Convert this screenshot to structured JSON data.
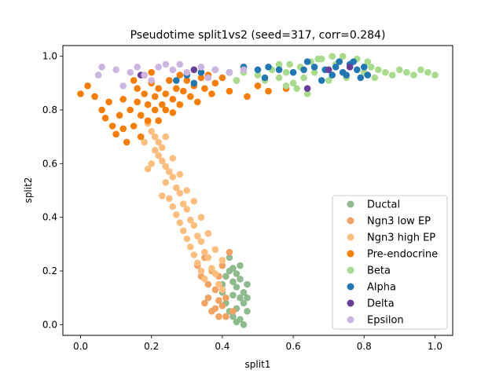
{
  "chart_data": {
    "type": "scatter",
    "title": "Pseudotime split1vs2 (seed=317, corr=0.284)",
    "xlabel": "split1",
    "ylabel": "split2",
    "xlim": [
      -0.05,
      1.05
    ],
    "ylim": [
      -0.04,
      1.04
    ],
    "xticks": [
      "0.0",
      "0.2",
      "0.4",
      "0.6",
      "0.8",
      "1.0"
    ],
    "yticks": [
      "0.0",
      "0.2",
      "0.4",
      "0.6",
      "0.8",
      "1.0"
    ],
    "grid": false,
    "legend_position": "lower right",
    "series": [
      {
        "name": "Ductal",
        "color": "#8fbc8f",
        "points": [
          [
            0.4,
            0.12
          ],
          [
            0.41,
            0.18
          ],
          [
            0.42,
            0.25
          ],
          [
            0.43,
            0.21
          ],
          [
            0.44,
            0.14
          ],
          [
            0.45,
            0.1
          ],
          [
            0.46,
            0.08
          ],
          [
            0.47,
            0.15
          ],
          [
            0.42,
            0.05
          ],
          [
            0.43,
            0.03
          ],
          [
            0.44,
            0.01
          ],
          [
            0.45,
            0.02
          ],
          [
            0.46,
            0.0
          ],
          [
            0.47,
            0.05
          ],
          [
            0.45,
            0.17
          ],
          [
            0.43,
            0.11
          ],
          [
            0.41,
            0.08
          ],
          [
            0.44,
            0.06
          ],
          [
            0.46,
            0.12
          ],
          [
            0.43,
            0.16
          ],
          [
            0.42,
            0.2
          ],
          [
            0.45,
            0.22
          ],
          [
            0.4,
            0.15
          ],
          [
            0.44,
            0.19
          ],
          [
            0.47,
            0.1
          ]
        ]
      },
      {
        "name": "Ngn3 low EP",
        "color": "#f4a261",
        "points": [
          [
            0.35,
            0.08
          ],
          [
            0.37,
            0.05
          ],
          [
            0.39,
            0.03
          ],
          [
            0.4,
            0.07
          ],
          [
            0.41,
            0.03
          ],
          [
            0.36,
            0.15
          ],
          [
            0.37,
            0.2
          ],
          [
            0.38,
            0.13
          ],
          [
            0.39,
            0.18
          ],
          [
            0.4,
            0.22
          ],
          [
            0.35,
            0.25
          ],
          [
            0.41,
            0.1
          ],
          [
            0.38,
            0.06
          ],
          [
            0.43,
            0.05
          ],
          [
            0.34,
            0.18
          ],
          [
            0.39,
            0.09
          ],
          [
            0.33,
            0.22
          ],
          [
            0.42,
            0.27
          ],
          [
            0.36,
            0.1
          ],
          [
            0.39,
            0.15
          ]
        ]
      },
      {
        "name": "Ngn3 high EP",
        "color": "#ffbe7d",
        "points": [
          [
            0.19,
            0.75
          ],
          [
            0.2,
            0.72
          ],
          [
            0.21,
            0.7
          ],
          [
            0.22,
            0.68
          ],
          [
            0.21,
            0.65
          ],
          [
            0.22,
            0.63
          ],
          [
            0.23,
            0.61
          ],
          [
            0.24,
            0.59
          ],
          [
            0.25,
            0.57
          ],
          [
            0.26,
            0.55
          ],
          [
            0.24,
            0.53
          ],
          [
            0.27,
            0.51
          ],
          [
            0.28,
            0.49
          ],
          [
            0.25,
            0.47
          ],
          [
            0.29,
            0.45
          ],
          [
            0.3,
            0.43
          ],
          [
            0.27,
            0.41
          ],
          [
            0.31,
            0.39
          ],
          [
            0.32,
            0.37
          ],
          [
            0.29,
            0.35
          ],
          [
            0.33,
            0.33
          ],
          [
            0.34,
            0.31
          ],
          [
            0.31,
            0.29
          ],
          [
            0.35,
            0.27
          ],
          [
            0.36,
            0.25
          ],
          [
            0.33,
            0.23
          ],
          [
            0.37,
            0.21
          ],
          [
            0.38,
            0.19
          ],
          [
            0.35,
            0.17
          ],
          [
            0.39,
            0.15
          ],
          [
            0.4,
            0.13
          ],
          [
            0.23,
            0.66
          ],
          [
            0.26,
            0.62
          ],
          [
            0.2,
            0.6
          ],
          [
            0.28,
            0.56
          ],
          [
            0.19,
            0.58
          ],
          [
            0.3,
            0.5
          ],
          [
            0.23,
            0.48
          ],
          [
            0.32,
            0.46
          ],
          [
            0.26,
            0.44
          ],
          [
            0.34,
            0.4
          ],
          [
            0.28,
            0.38
          ],
          [
            0.36,
            0.34
          ],
          [
            0.3,
            0.32
          ],
          [
            0.38,
            0.28
          ],
          [
            0.32,
            0.26
          ],
          [
            0.4,
            0.24
          ],
          [
            0.34,
            0.2
          ],
          [
            0.24,
            0.7
          ],
          [
            0.18,
            0.68
          ]
        ]
      },
      {
        "name": "Pre-endocrine",
        "color": "#f97c03",
        "points": [
          [
            0.0,
            0.86
          ],
          [
            0.02,
            0.89
          ],
          [
            0.04,
            0.85
          ],
          [
            0.06,
            0.8
          ],
          [
            0.07,
            0.77
          ],
          [
            0.09,
            0.74
          ],
          [
            0.1,
            0.71
          ],
          [
            0.11,
            0.78
          ],
          [
            0.12,
            0.84
          ],
          [
            0.13,
            0.68
          ],
          [
            0.14,
            0.8
          ],
          [
            0.15,
            0.74
          ],
          [
            0.16,
            0.88
          ],
          [
            0.16,
            0.83
          ],
          [
            0.17,
            0.78
          ],
          [
            0.17,
            0.7
          ],
          [
            0.18,
            0.86
          ],
          [
            0.19,
            0.82
          ],
          [
            0.19,
            0.76
          ],
          [
            0.2,
            0.9
          ],
          [
            0.21,
            0.85
          ],
          [
            0.21,
            0.8
          ],
          [
            0.22,
            0.88
          ],
          [
            0.23,
            0.82
          ],
          [
            0.24,
            0.86
          ],
          [
            0.25,
            0.91
          ],
          [
            0.26,
            0.84
          ],
          [
            0.27,
            0.88
          ],
          [
            0.28,
            0.82
          ],
          [
            0.29,
            0.87
          ],
          [
            0.3,
            0.91
          ],
          [
            0.31,
            0.85
          ],
          [
            0.32,
            0.89
          ],
          [
            0.33,
            0.83
          ],
          [
            0.34,
            0.92
          ],
          [
            0.35,
            0.88
          ],
          [
            0.36,
            0.93
          ],
          [
            0.37,
            0.86
          ],
          [
            0.38,
            0.9
          ],
          [
            0.4,
            0.92
          ],
          [
            0.42,
            0.87
          ],
          [
            0.44,
            0.91
          ],
          [
            0.47,
            0.85
          ],
          [
            0.5,
            0.89
          ],
          [
            0.53,
            0.87
          ],
          [
            0.58,
            0.88
          ],
          [
            0.2,
            0.94
          ],
          [
            0.28,
            0.93
          ],
          [
            0.15,
            0.91
          ],
          [
            0.22,
            0.76
          ],
          [
            0.08,
            0.83
          ],
          [
            0.12,
            0.73
          ],
          [
            0.26,
            0.79
          ],
          [
            0.18,
            0.93
          ],
          [
            0.24,
            0.8
          ]
        ]
      },
      {
        "name": "Beta",
        "color": "#a8dc8c",
        "points": [
          [
            0.5,
            0.93
          ],
          [
            0.52,
            0.91
          ],
          [
            0.54,
            0.95
          ],
          [
            0.56,
            0.92
          ],
          [
            0.58,
            0.94
          ],
          [
            0.6,
            0.9
          ],
          [
            0.62,
            0.96
          ],
          [
            0.63,
            0.92
          ],
          [
            0.65,
            0.98
          ],
          [
            0.66,
            0.94
          ],
          [
            0.68,
            0.99
          ],
          [
            0.7,
            0.95
          ],
          [
            0.72,
            0.97
          ],
          [
            0.74,
            1.0
          ],
          [
            0.76,
            0.96
          ],
          [
            0.78,
            0.99
          ],
          [
            0.8,
            0.94
          ],
          [
            0.82,
            0.96
          ],
          [
            0.84,
            0.95
          ],
          [
            0.86,
            0.94
          ],
          [
            0.88,
            0.93
          ],
          [
            0.9,
            0.95
          ],
          [
            0.92,
            0.94
          ],
          [
            0.94,
            0.93
          ],
          [
            0.96,
            0.95
          ],
          [
            0.98,
            0.94
          ],
          [
            1.0,
            0.93
          ],
          [
            0.58,
            0.89
          ],
          [
            0.61,
            0.88
          ],
          [
            0.56,
            0.97
          ],
          [
            0.44,
            0.91
          ],
          [
            0.7,
            0.91
          ],
          [
            0.75,
            0.92
          ],
          [
            0.64,
            0.86
          ],
          [
            0.67,
            0.99
          ],
          [
            0.81,
            0.98
          ],
          [
            0.83,
            0.92
          ],
          [
            0.71,
            1.0
          ],
          [
            0.59,
            0.97
          ],
          [
            0.46,
            0.94
          ]
        ]
      },
      {
        "name": "Alpha",
        "color": "#1f77b4",
        "points": [
          [
            0.3,
            0.93
          ],
          [
            0.34,
            0.94
          ],
          [
            0.38,
            0.95
          ],
          [
            0.42,
            0.94
          ],
          [
            0.46,
            0.96
          ],
          [
            0.5,
            0.95
          ],
          [
            0.53,
            0.96
          ],
          [
            0.56,
            0.95
          ],
          [
            0.6,
            0.94
          ],
          [
            0.63,
            0.95
          ],
          [
            0.66,
            0.96
          ],
          [
            0.69,
            0.95
          ],
          [
            0.72,
            0.96
          ],
          [
            0.74,
            0.94
          ],
          [
            0.76,
            0.97
          ],
          [
            0.78,
            0.95
          ],
          [
            0.8,
            0.96
          ],
          [
            0.81,
            0.93
          ],
          [
            0.79,
            0.92
          ],
          [
            0.77,
            0.98
          ],
          [
            0.75,
            0.93
          ],
          [
            0.73,
            0.98
          ],
          [
            0.71,
            0.93
          ],
          [
            0.27,
            0.91
          ],
          [
            0.32,
            0.9
          ],
          [
            0.68,
            0.91
          ],
          [
            0.64,
            0.98
          ],
          [
            0.52,
            0.92
          ]
        ]
      },
      {
        "name": "Delta",
        "color": "#6a3d9a",
        "points": [
          [
            0.17,
            0.93
          ],
          [
            0.64,
            0.88
          ],
          [
            0.7,
            0.95
          ],
          [
            0.32,
            0.95
          ],
          [
            0.76,
            0.96
          ]
        ]
      },
      {
        "name": "Epsilon",
        "color": "#cdb5e1",
        "points": [
          [
            0.06,
            0.96
          ],
          [
            0.1,
            0.95
          ],
          [
            0.14,
            0.94
          ],
          [
            0.18,
            0.93
          ],
          [
            0.22,
            0.96
          ],
          [
            0.26,
            0.95
          ],
          [
            0.3,
            0.94
          ],
          [
            0.34,
            0.96
          ],
          [
            0.38,
            0.95
          ],
          [
            0.42,
            0.94
          ],
          [
            0.46,
            0.95
          ],
          [
            0.12,
            0.89
          ],
          [
            0.24,
            0.97
          ],
          [
            0.36,
            0.92
          ],
          [
            0.2,
            0.91
          ],
          [
            0.28,
            0.97
          ],
          [
            0.05,
            0.93
          ],
          [
            0.16,
            0.96
          ]
        ]
      }
    ]
  }
}
